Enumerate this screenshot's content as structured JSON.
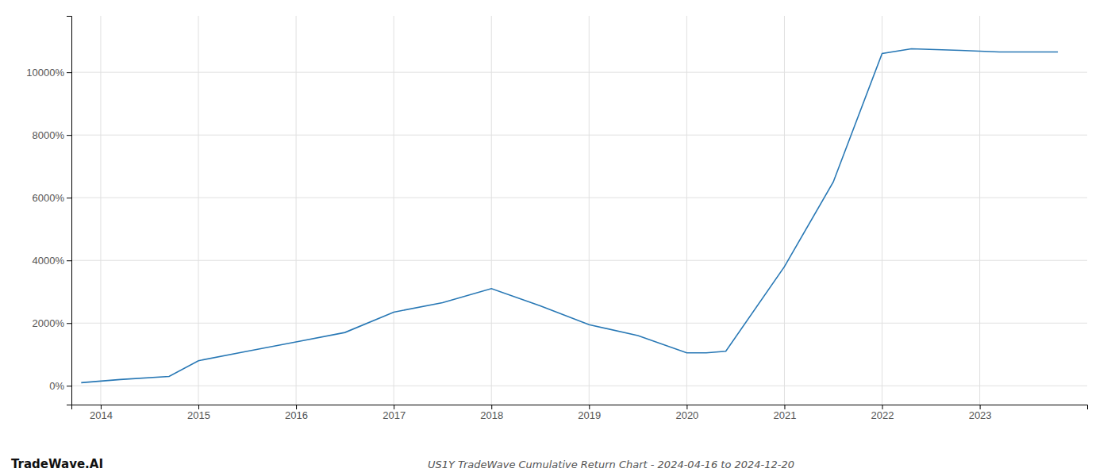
{
  "chart_data": {
    "type": "line",
    "title": "US1Y TradeWave Cumulative Return Chart - 2024-04-16 to 2024-12-20",
    "annotations": [
      "TradeWave.AI"
    ],
    "x": [
      2013.8,
      2014.2,
      2014.7,
      2015.0,
      2015.5,
      2016.0,
      2016.5,
      2017.0,
      2017.5,
      2018.0,
      2018.5,
      2019.0,
      2019.5,
      2020.0,
      2020.2,
      2020.4,
      2021.0,
      2021.5,
      2022.0,
      2022.3,
      2022.8,
      2023.2,
      2023.8
    ],
    "values": [
      100,
      200,
      300,
      800,
      1100,
      1400,
      1700,
      2350,
      2650,
      3100,
      2550,
      1950,
      1600,
      1050,
      1050,
      1100,
      3800,
      6500,
      10600,
      10750,
      10700,
      10650,
      10650
    ],
    "color": "#2878b5",
    "xlim": [
      2013.7,
      2024.1
    ],
    "ylim": [
      -600,
      11800
    ],
    "xticks": [
      2014,
      2015,
      2016,
      2017,
      2018,
      2019,
      2020,
      2021,
      2022,
      2023
    ],
    "yticks": [
      {
        "value": 0,
        "label": "0%"
      },
      {
        "value": 2000,
        "label": "2000%"
      },
      {
        "value": 4000,
        "label": "4000%"
      },
      {
        "value": 6000,
        "label": "6000%"
      },
      {
        "value": 8000,
        "label": "8000%"
      },
      {
        "value": 10000,
        "label": "10000%"
      }
    ],
    "grid": true
  }
}
